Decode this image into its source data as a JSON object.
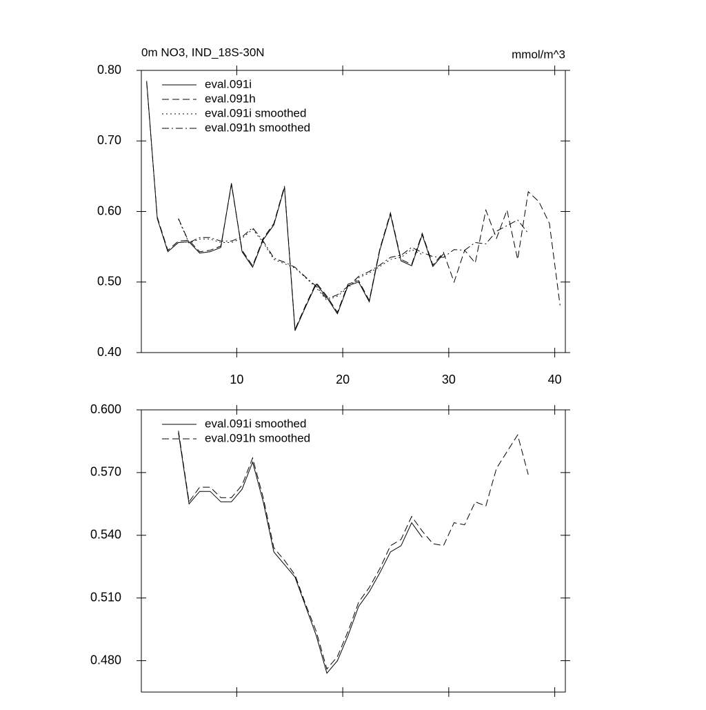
{
  "chart_data": [
    {
      "type": "line",
      "title": "0m NO3, IND_18S-30N",
      "units": "mmol/m^3",
      "x": [
        1.5,
        2.5,
        3.5,
        4.5,
        5.5,
        6.5,
        7.5,
        8.5,
        9.5,
        10.5,
        11.5,
        12.5,
        13.5,
        14.5,
        15.5,
        16.5,
        17.5,
        18.5,
        19.5,
        20.5,
        21.5,
        22.5,
        23.5,
        24.5,
        25.5,
        26.5,
        27.5,
        28.5,
        29.5,
        30.5,
        31.5,
        32.5,
        33.5,
        34.5,
        35.5,
        36.5,
        37.5,
        38.5,
        39.5,
        40.5
      ],
      "series": [
        {
          "name": "eval.091i",
          "color": "#000000",
          "style": "solid",
          "values": [
            0.785,
            0.59,
            0.543,
            0.556,
            0.557,
            0.541,
            0.543,
            0.549,
            0.64,
            0.543,
            0.521,
            0.56,
            0.581,
            0.634,
            0.431,
            0.465,
            0.497,
            0.478,
            0.455,
            0.495,
            0.5,
            0.472,
            0.545,
            0.596,
            0.53,
            0.523,
            0.567,
            0.522,
            0.54,
            null,
            null,
            null,
            null,
            null,
            null,
            null,
            null,
            null,
            null,
            null
          ]
        },
        {
          "name": "eval.091h",
          "color": "#000000",
          "style": "dashed",
          "values": [
            0.783,
            0.592,
            0.545,
            0.558,
            0.559,
            0.543,
            0.545,
            0.551,
            0.638,
            0.545,
            0.523,
            0.562,
            0.583,
            0.636,
            0.433,
            0.467,
            0.499,
            0.48,
            0.457,
            0.497,
            0.502,
            0.474,
            0.547,
            0.598,
            0.532,
            0.525,
            0.569,
            0.524,
            0.542,
            0.5,
            0.545,
            0.527,
            0.602,
            0.562,
            0.602,
            0.532,
            0.628,
            0.614,
            0.583,
            0.467
          ]
        },
        {
          "name": "eval.091i smoothed",
          "color": "#000000",
          "style": "dotted",
          "values": [
            null,
            null,
            null,
            0.589,
            0.555,
            0.561,
            0.561,
            0.556,
            0.556,
            0.562,
            0.575,
            0.556,
            0.532,
            0.526,
            0.52,
            0.506,
            0.492,
            0.474,
            0.48,
            0.492,
            0.506,
            0.513,
            0.522,
            0.532,
            0.535,
            0.546,
            0.539,
            null,
            null,
            null,
            null,
            null,
            null,
            null,
            null,
            null,
            null,
            null,
            null,
            null
          ]
        },
        {
          "name": "eval.091h smoothed",
          "color": "#000000",
          "style": "dashdot",
          "values": [
            null,
            null,
            null,
            0.59,
            0.556,
            0.563,
            0.563,
            0.558,
            0.558,
            0.564,
            0.577,
            0.558,
            0.534,
            0.528,
            0.521,
            0.507,
            0.494,
            0.476,
            0.482,
            0.494,
            0.508,
            0.515,
            0.524,
            0.535,
            0.538,
            0.549,
            0.542,
            0.536,
            0.535,
            0.546,
            0.545,
            0.556,
            0.554,
            0.572,
            0.58,
            0.588,
            0.569,
            null,
            null,
            null
          ]
        }
      ],
      "xlim": [
        1,
        41
      ],
      "xticks": [
        10,
        20,
        30,
        40
      ],
      "show_xtick_labels": true,
      "ylim": [
        0.4,
        0.8
      ],
      "yticks": [
        {
          "value": 0.4,
          "label": "0.40"
        },
        {
          "value": 0.5,
          "label": "0.50"
        },
        {
          "value": 0.6,
          "label": "0.60"
        },
        {
          "value": 0.7,
          "label": "0.70"
        },
        {
          "value": 0.8,
          "label": "0.80"
        }
      ],
      "legend": "upper left",
      "grid": false
    },
    {
      "type": "line",
      "x": [
        1.5,
        2.5,
        3.5,
        4.5,
        5.5,
        6.5,
        7.5,
        8.5,
        9.5,
        10.5,
        11.5,
        12.5,
        13.5,
        14.5,
        15.5,
        16.5,
        17.5,
        18.5,
        19.5,
        20.5,
        21.5,
        22.5,
        23.5,
        24.5,
        25.5,
        26.5,
        27.5,
        28.5,
        29.5,
        30.5,
        31.5,
        32.5,
        33.5,
        34.5,
        35.5,
        36.5,
        37.5,
        38.5,
        39.5,
        40.5
      ],
      "series": [
        {
          "name": "eval.091i smoothed",
          "color": "#000000",
          "style": "solid",
          "values": [
            null,
            null,
            null,
            0.589,
            0.555,
            0.561,
            0.561,
            0.556,
            0.556,
            0.562,
            0.575,
            0.556,
            0.532,
            0.526,
            0.52,
            0.506,
            0.492,
            0.474,
            0.48,
            0.492,
            0.506,
            0.513,
            0.522,
            0.532,
            0.535,
            0.546,
            0.539,
            null,
            null,
            null,
            null,
            null,
            null,
            null,
            null,
            null,
            null,
            null,
            null,
            null
          ]
        },
        {
          "name": "eval.091h smoothed",
          "color": "#000000",
          "style": "dashed",
          "values": [
            null,
            null,
            null,
            0.59,
            0.556,
            0.563,
            0.563,
            0.558,
            0.558,
            0.564,
            0.577,
            0.558,
            0.534,
            0.528,
            0.521,
            0.507,
            0.494,
            0.476,
            0.482,
            0.494,
            0.508,
            0.515,
            0.524,
            0.535,
            0.538,
            0.549,
            0.542,
            0.536,
            0.535,
            0.546,
            0.545,
            0.556,
            0.554,
            0.572,
            0.58,
            0.588,
            0.569,
            null,
            null,
            null
          ]
        }
      ],
      "xlim": [
        1,
        41
      ],
      "xticks": [
        10,
        20,
        30,
        40
      ],
      "show_xtick_labels": false,
      "ylim": [
        0.465,
        0.6
      ],
      "yticks": [
        {
          "value": 0.48,
          "label": "0.480"
        },
        {
          "value": 0.51,
          "label": "0.510"
        },
        {
          "value": 0.54,
          "label": "0.540"
        },
        {
          "value": 0.57,
          "label": "0.570"
        },
        {
          "value": 0.6,
          "label": "0.600"
        }
      ],
      "legend": "upper left",
      "grid": false
    }
  ]
}
